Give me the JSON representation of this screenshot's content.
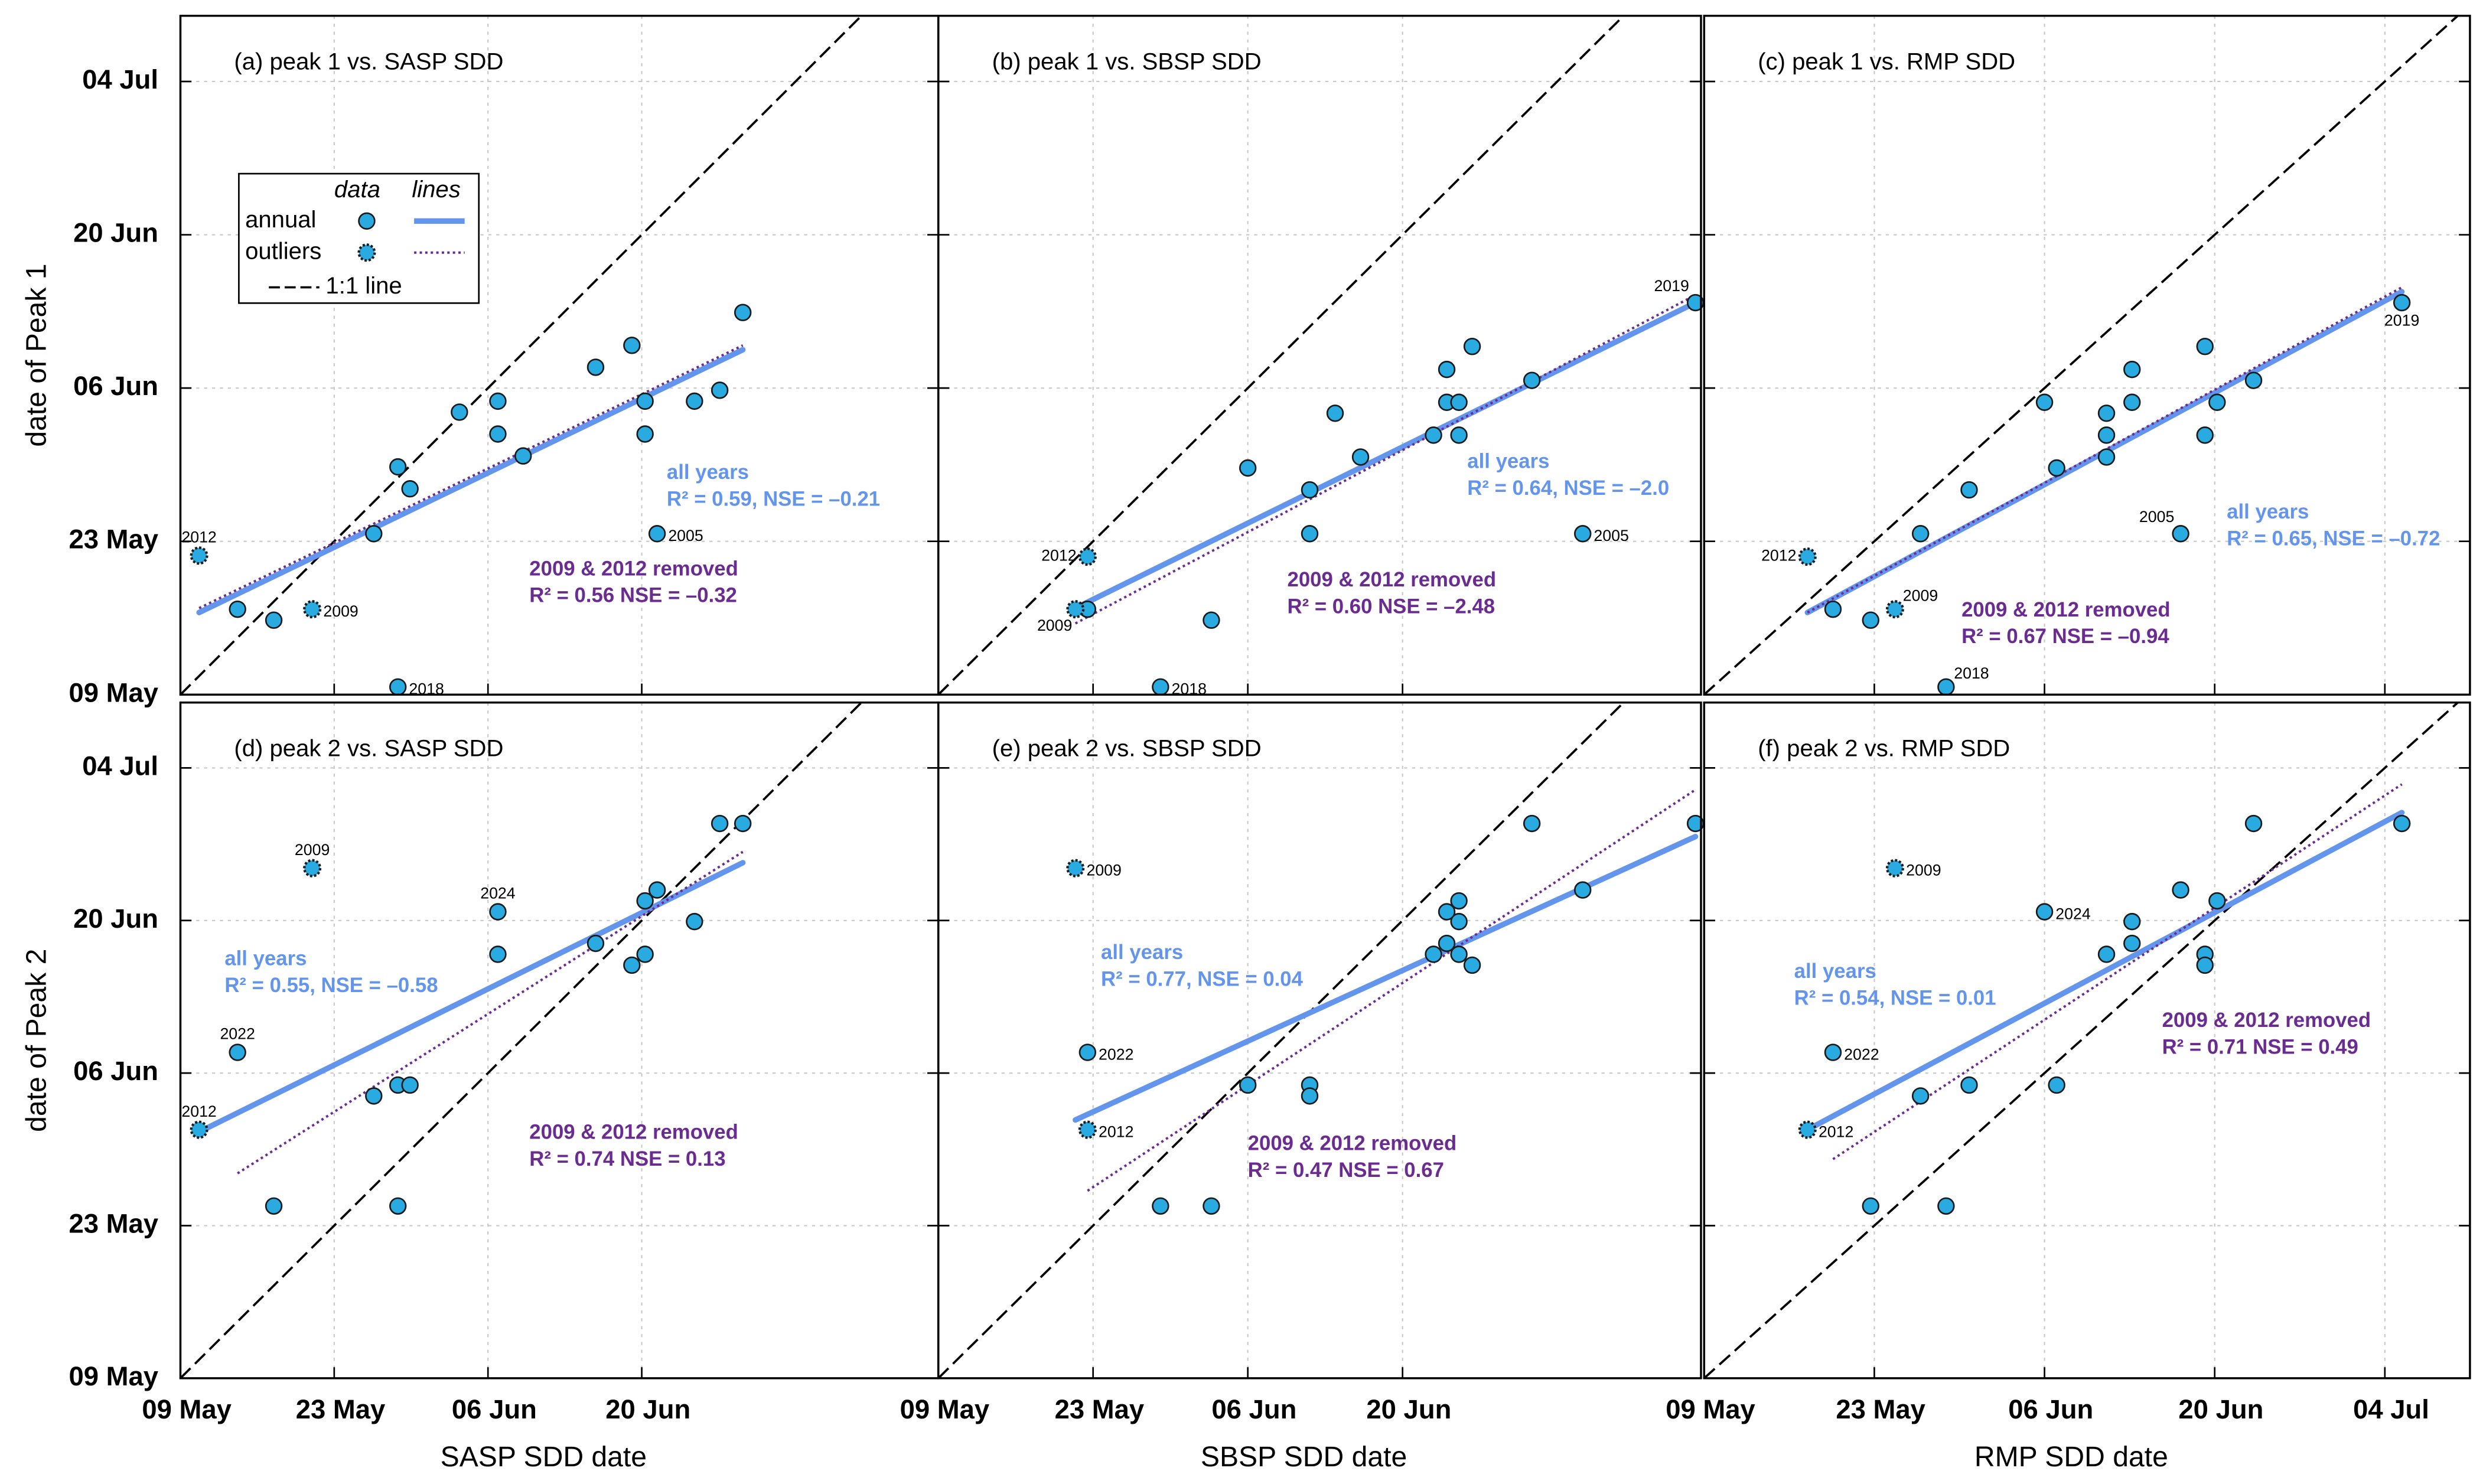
{
  "legend": {
    "header_data": "data",
    "header_lines": "lines",
    "one_to_one": "1:1 line"
  },
  "chart_data": [
    {
      "type": "scatter",
      "title": "(a) peak 1 vs. SASP SDD",
      "ylabel": "date of Peak 1",
      "xlim": [
        129,
        198
      ],
      "ylim": [
        129,
        191
      ],
      "grid": true,
      "xticks": [
        129,
        143,
        157,
        171
      ],
      "yticks": [
        {
          "value": 129,
          "label": "09 May"
        },
        {
          "value": 143,
          "label": "23 May"
        },
        {
          "value": 157,
          "label": "06 Jun"
        },
        {
          "value": 171,
          "label": "20 Jun"
        },
        {
          "value": 185,
          "label": "04 Jul"
        }
      ],
      "series": [
        {
          "name": "annual",
          "color": "#29abe2",
          "x": [
            134.2,
            137.5,
            146.6,
            148.8,
            149.9,
            148.8,
            154.4,
            157.9,
            157.9,
            160.2,
            166.8,
            170.1,
            171.3,
            171.3,
            172.4,
            175.8,
            178.1,
            180.2
          ],
          "values": [
            136.8,
            135.8,
            143.7,
            149.8,
            147.8,
            129.7,
            154.8,
            155.8,
            152.8,
            150.8,
            158.9,
            160.9,
            155.8,
            152.8,
            143.7,
            155.8,
            156.8,
            163.9
          ],
          "labels": [
            null,
            null,
            null,
            null,
            null,
            "2018",
            null,
            null,
            null,
            null,
            null,
            null,
            null,
            null,
            "2005",
            null,
            null,
            null
          ]
        },
        {
          "name": "outliers",
          "color": "#29abe2",
          "x": [
            130.7,
            141.0
          ],
          "values": [
            141.7,
            136.8
          ],
          "labels": [
            "2012",
            "2009"
          ]
        }
      ],
      "fits": [
        {
          "name": "all years",
          "text": "R² = 0.59, NSE = –0.21",
          "color": "#6495ed",
          "x": [
            130.7,
            180.2
          ],
          "values": [
            136.5,
            160.5
          ]
        },
        {
          "name": "2009 & 2012 removed",
          "text": "R² = 0.56 NSE = –0.32",
          "color": "#6a2c91",
          "x": [
            130.7,
            180.2
          ],
          "values": [
            136.9,
            160.9
          ]
        }
      ]
    },
    {
      "type": "scatter",
      "title": "(b) peak 1 vs. SBSP SDD",
      "xlim": [
        129,
        198
      ],
      "ylim": [
        129,
        191
      ],
      "grid": true,
      "xticks": [
        129,
        143,
        157,
        171
      ],
      "yticks": [
        129,
        143,
        157,
        171,
        185
      ],
      "series": [
        {
          "color": "#29abe2",
          "x": [
            142.5,
            153.7,
            149.1,
            157.0,
            162.6,
            162.6,
            164.9,
            167.2,
            173.8,
            175.0,
            175.0,
            176.1,
            176.1,
            177.3,
            182.7,
            187.3,
            197.5
          ],
          "values": [
            136.8,
            135.8,
            129.7,
            149.7,
            147.7,
            143.7,
            154.7,
            150.7,
            152.7,
            158.7,
            155.7,
            155.7,
            152.7,
            160.8,
            157.7,
            143.7,
            164.8
          ],
          "labels": [
            null,
            null,
            "2018",
            null,
            null,
            null,
            null,
            null,
            null,
            null,
            null,
            null,
            null,
            null,
            null,
            "2005",
            "2019"
          ]
        },
        {
          "color": "#29abe2",
          "x": [
            142.5,
            141.4
          ],
          "values": [
            141.6,
            136.8
          ],
          "labels": [
            "2012",
            "2009"
          ]
        }
      ],
      "fits": [
        {
          "name": "all years",
          "text": "R² = 0.64, NSE = –2.0",
          "color": "#6495ed",
          "x": [
            141.4,
            197.5
          ],
          "values": [
            136.9,
            164.8
          ]
        },
        {
          "name": "2009 & 2012 removed",
          "text": "R² = 0.60 NSE = –2.48",
          "color": "#6a2c91",
          "x": [
            141.4,
            197.5
          ],
          "values": [
            135.5,
            165.5
          ]
        }
      ]
    },
    {
      "type": "scatter",
      "title": "(c) peak 1 vs. RMP SDD",
      "xlim": [
        129,
        192
      ],
      "ylim": [
        129,
        191
      ],
      "grid": true,
      "xticks": [
        129,
        143,
        157,
        171,
        185
      ],
      "yticks": [
        129,
        143,
        157,
        171,
        185
      ],
      "series": [
        {
          "color": "#29abe2",
          "x": [
            139.6,
            142.7,
            146.8,
            148.9,
            150.8,
            157.0,
            158.0,
            162.1,
            162.1,
            162.1,
            164.2,
            164.2,
            168.2,
            170.2,
            170.2,
            171.2,
            174.2,
            186.4
          ],
          "values": [
            136.8,
            135.8,
            143.7,
            129.7,
            147.7,
            155.7,
            149.7,
            154.7,
            152.7,
            150.7,
            158.7,
            155.7,
            143.7,
            160.8,
            152.7,
            155.7,
            157.7,
            164.8
          ],
          "labels": [
            null,
            null,
            null,
            "2018",
            null,
            null,
            null,
            null,
            null,
            null,
            null,
            null,
            "2005",
            null,
            null,
            null,
            null,
            "2019"
          ]
        },
        {
          "color": "#29abe2",
          "x": [
            137.5,
            144.7
          ],
          "values": [
            141.6,
            136.8
          ],
          "labels": [
            "2012",
            "2009"
          ]
        }
      ],
      "fits": [
        {
          "name": "all years",
          "text": "R² = 0.65, NSE = –0.72",
          "color": "#6495ed",
          "x": [
            137.5,
            186.4
          ],
          "values": [
            136.5,
            165.8
          ]
        },
        {
          "name": "2009 & 2012 removed",
          "text": "R² = 0.67 NSE = –0.94",
          "color": "#6a2c91",
          "x": [
            137.5,
            186.4
          ],
          "values": [
            136.5,
            166.2
          ]
        }
      ]
    },
    {
      "type": "scatter",
      "title": "(d) peak 2 vs. SASP SDD",
      "xlabel": "SASP SDD date",
      "ylabel": "date of Peak 2",
      "xlim": [
        129,
        198
      ],
      "ylim": [
        129,
        191
      ],
      "grid": true,
      "xticks": [
        {
          "value": 129,
          "label": "09 May"
        },
        {
          "value": 143,
          "label": "23 May"
        },
        {
          "value": 157,
          "label": "06 Jun"
        },
        {
          "value": 171,
          "label": "20 Jun"
        }
      ],
      "yticks": [
        {
          "value": 129,
          "label": "09 May"
        },
        {
          "value": 143,
          "label": "23 May"
        },
        {
          "value": 157,
          "label": "06 Jun"
        },
        {
          "value": 171,
          "label": "20 Jun"
        },
        {
          "value": 185,
          "label": "04 Jul"
        }
      ],
      "series": [
        {
          "color": "#29abe2",
          "x": [
            134.2,
            137.5,
            146.6,
            148.8,
            149.9,
            148.8,
            157.9,
            157.9,
            166.8,
            170.1,
            171.3,
            171.3,
            172.4,
            175.8,
            178.1,
            180.2
          ],
          "values": [
            158.9,
            144.8,
            154.9,
            155.9,
            155.9,
            144.8,
            167.9,
            171.8,
            168.9,
            166.9,
            167.9,
            172.8,
            173.8,
            170.9,
            179.9,
            179.9
          ],
          "labels": [
            "2022",
            null,
            null,
            null,
            null,
            null,
            null,
            "2024",
            null,
            null,
            null,
            null,
            null,
            null,
            null,
            null
          ]
        },
        {
          "color": "#29abe2",
          "x": [
            130.7,
            141.0
          ],
          "values": [
            151.8,
            175.8
          ],
          "labels": [
            "2012",
            "2009"
          ]
        }
      ],
      "fits": [
        {
          "name": "all years",
          "text": "R² = 0.55, NSE = –0.58",
          "color": "#6495ed",
          "x": [
            130.7,
            180.2
          ],
          "values": [
            151.6,
            176.3
          ]
        },
        {
          "name": "2009 & 2012 removed",
          "text": "R² = 0.74 NSE = 0.13",
          "color": "#6a2c91",
          "x": [
            134.2,
            180.2
          ],
          "values": [
            147.8,
            177.3
          ]
        }
      ]
    },
    {
      "type": "scatter",
      "title": "(e) peak 2 vs. SBSP SDD",
      "xlabel": "SBSP SDD date",
      "xlim": [
        129,
        198
      ],
      "ylim": [
        129,
        191
      ],
      "grid": true,
      "xticks": [
        {
          "value": 129,
          "label": "09 May"
        },
        {
          "value": 143,
          "label": "23 May"
        },
        {
          "value": 157,
          "label": "06 Jun"
        },
        {
          "value": 171,
          "label": "20 Jun"
        }
      ],
      "yticks": [
        129,
        143,
        157,
        171,
        185
      ],
      "series": [
        {
          "color": "#29abe2",
          "x": [
            142.5,
            149.1,
            153.7,
            157.0,
            162.6,
            162.6,
            173.8,
            175.0,
            175.0,
            176.1,
            176.1,
            176.1,
            177.3,
            182.7,
            187.3,
            197.5
          ],
          "values": [
            158.9,
            144.8,
            144.8,
            155.9,
            155.9,
            154.9,
            167.9,
            171.8,
            168.9,
            172.8,
            170.9,
            167.9,
            166.9,
            179.9,
            173.8,
            179.9
          ],
          "labels": [
            "2022",
            null,
            null,
            null,
            null,
            null,
            null,
            null,
            null,
            null,
            null,
            null,
            null,
            null,
            null,
            null
          ]
        },
        {
          "color": "#29abe2",
          "x": [
            141.4,
            142.5
          ],
          "values": [
            175.8,
            151.8
          ],
          "labels": [
            "2009",
            "2012"
          ]
        }
      ],
      "fits": [
        {
          "name": "all years",
          "text": "R² = 0.77, NSE = 0.04",
          "color": "#6495ed",
          "x": [
            141.4,
            197.5
          ],
          "values": [
            152.7,
            178.7
          ]
        },
        {
          "name": "2009 & 2012 removed",
          "text": "R² = 0.47 NSE = 0.67",
          "color": "#6a2c91",
          "x": [
            142.5,
            197.5
          ],
          "values": [
            146.2,
            183.0
          ]
        }
      ]
    },
    {
      "type": "scatter",
      "title": "(f) peak 2 vs. RMP SDD",
      "xlabel": "RMP SDD date",
      "xlim": [
        129,
        192
      ],
      "ylim": [
        129,
        191
      ],
      "grid": true,
      "xticks": [
        {
          "value": 129,
          "label": "09 May"
        },
        {
          "value": 143,
          "label": "23 May"
        },
        {
          "value": 157,
          "label": "06 Jun"
        },
        {
          "value": 171,
          "label": "20 Jun"
        },
        {
          "value": 185,
          "label": "04 Jul"
        }
      ],
      "yticks": [
        129,
        143,
        157,
        171,
        185
      ],
      "series": [
        {
          "color": "#29abe2",
          "x": [
            139.6,
            142.7,
            146.8,
            148.9,
            150.8,
            157.0,
            158.0,
            162.1,
            164.2,
            164.2,
            168.2,
            170.2,
            170.2,
            171.2,
            174.2,
            186.4
          ],
          "values": [
            158.9,
            144.8,
            154.9,
            144.8,
            155.9,
            171.8,
            155.9,
            167.9,
            170.9,
            168.9,
            173.8,
            167.9,
            166.9,
            172.8,
            179.9,
            179.9
          ],
          "labels": [
            "2022",
            null,
            null,
            null,
            null,
            "2024",
            null,
            null,
            null,
            null,
            null,
            null,
            null,
            null,
            null,
            null
          ]
        },
        {
          "color": "#29abe2",
          "x": [
            137.5,
            144.7
          ],
          "values": [
            151.8,
            175.8
          ],
          "labels": [
            "2012",
            "2009"
          ]
        }
      ],
      "fits": [
        {
          "name": "all years",
          "text": "R² = 0.54, NSE = 0.01",
          "color": "#6495ed",
          "x": [
            137.5,
            186.4
          ],
          "values": [
            151.8,
            180.9
          ]
        },
        {
          "name": "2009 & 2012 removed",
          "text": "R² = 0.71 NSE = 0.49",
          "color": "#6a2c91",
          "x": [
            139.6,
            186.4
          ],
          "values": [
            149.1,
            183.5
          ]
        }
      ]
    }
  ]
}
